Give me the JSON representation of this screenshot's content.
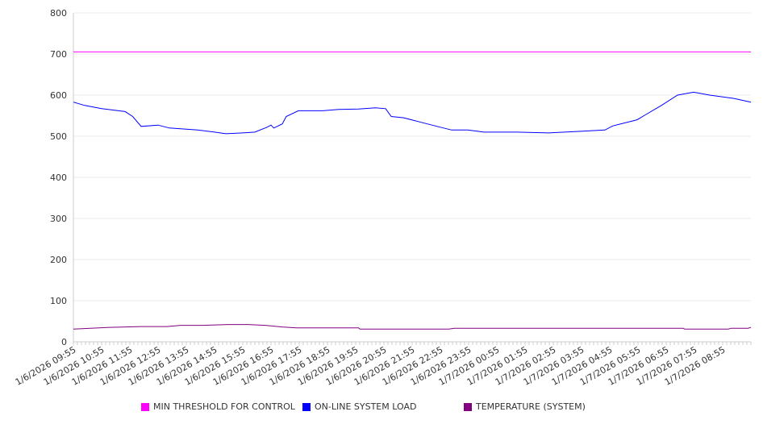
{
  "chart_data": {
    "type": "line",
    "title": "",
    "xlabel": "",
    "ylabel": "",
    "ylim": [
      0,
      800
    ],
    "yticks": [
      "0",
      "100",
      "200",
      "300",
      "400",
      "500",
      "600",
      "700",
      "800"
    ],
    "grid": true,
    "legend_position": "bottom",
    "x_unit": "hours since 1/6/2026 09:55",
    "xlim": [
      0,
      24
    ],
    "xtick_labels": [
      "1/6/2026 09:55",
      "1/6/2026 10:55",
      "1/6/2026 11:55",
      "1/6/2026 12:55",
      "1/6/2026 13:55",
      "1/6/2026 14:55",
      "1/6/2026 15:55",
      "1/6/2026 16:55",
      "1/6/2026 17:55",
      "1/6/2026 18:55",
      "1/6/2026 19:55",
      "1/6/2026 20:55",
      "1/6/2026 21:55",
      "1/6/2026 22:55",
      "1/6/2026 23:55",
      "1/7/2026 00:55",
      "1/7/2026 01:55",
      "1/7/2026 02:55",
      "1/7/2026 03:55",
      "1/7/2026 04:55",
      "1/7/2026 05:55",
      "1/7/2026 06:55",
      "1/7/2026 07:55",
      "1/7/2026 08:55"
    ],
    "series": [
      {
        "name": "MIN THRESHOLD FOR CONTROL",
        "color": "#ff00ff",
        "x": [
          0,
          24
        ],
        "values": [
          705,
          705
        ]
      },
      {
        "name": "ON-LINE SYSTEM LOAD",
        "color": "#0000ff",
        "x": [
          0,
          0.4,
          1,
          1.83,
          2.1,
          2.4,
          3,
          3.4,
          4,
          4.4,
          5,
          5.4,
          6,
          6.43,
          6.86,
          7,
          7.1,
          7.4,
          7.54,
          7.97,
          8.83,
          9.4,
          10.1,
          10.7,
          11.06,
          11.26,
          11.7,
          12.26,
          12.83,
          13.4,
          13.97,
          14.54,
          15.7,
          16.83,
          17.97,
          18.83,
          19.1,
          19.97,
          20.26,
          20.83,
          21.4,
          21.97,
          22.54,
          23.4,
          24
        ],
        "values": [
          583,
          575,
          567,
          560,
          548,
          524,
          527,
          520,
          517,
          515,
          510,
          506,
          508,
          510,
          522,
          527,
          520,
          530,
          548,
          562,
          562,
          565,
          566,
          569,
          567,
          548,
          545,
          535,
          525,
          515,
          515,
          510,
          510,
          508,
          512,
          515,
          525,
          540,
          552,
          575,
          600,
          607,
          600,
          592,
          583
        ]
      },
      {
        "name": "TEMPERATURE (SYSTEM)",
        "color": "#800080",
        "x": [
          0,
          0.6,
          1.3,
          2.4,
          3.3,
          3.8,
          4.6,
          5.5,
          6.2,
          6.8,
          7.4,
          7.9,
          10.1,
          10.15,
          13.3,
          13.5,
          21.6,
          21.65,
          23.2,
          23.3,
          23.9,
          24
        ],
        "values": [
          31,
          33,
          35,
          37,
          37,
          40,
          40,
          42,
          42,
          40,
          36,
          34,
          34,
          31,
          31,
          33,
          33,
          31,
          31,
          33,
          33,
          35
        ]
      }
    ]
  }
}
